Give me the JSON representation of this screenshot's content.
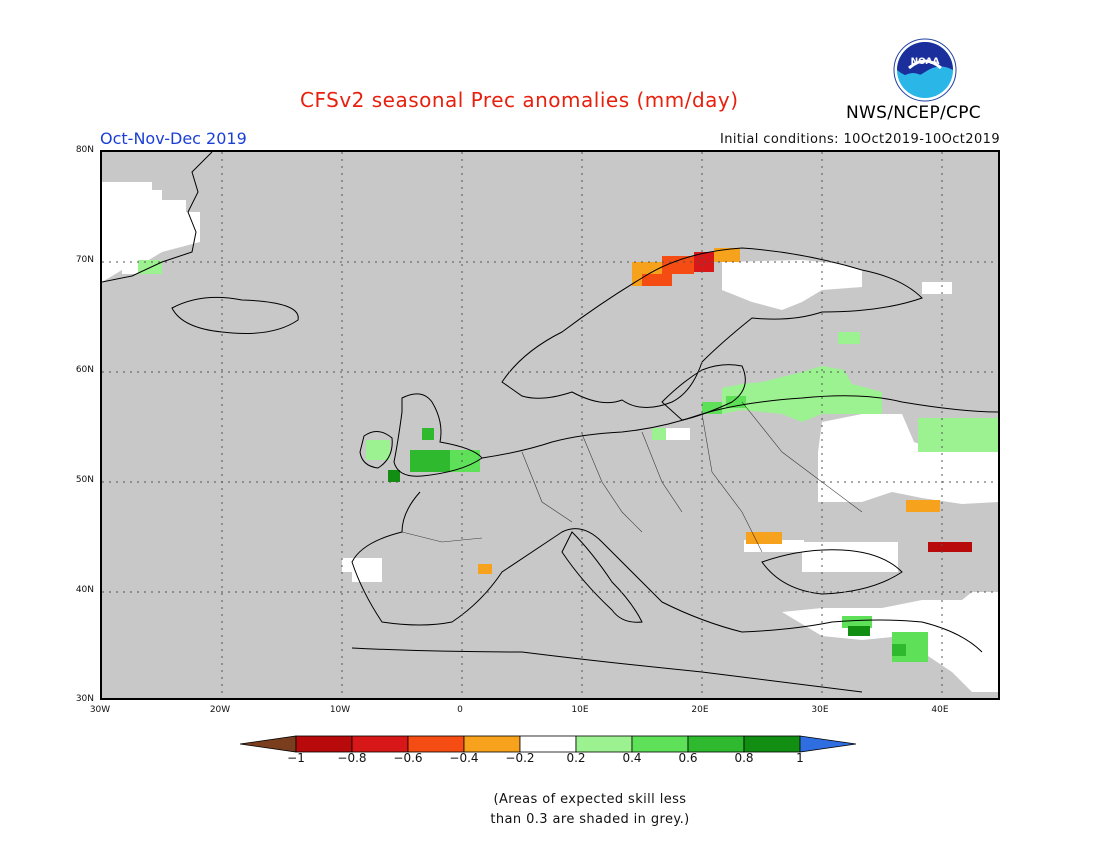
{
  "header": {
    "title": "CFSv2 seasonal Prec anomalies (mm/day)",
    "period": "Oct-Nov-Dec 2019",
    "initial_conditions": "Initial conditions: 10Oct2019-10Oct2019",
    "agency": "NWS/NCEP/CPC",
    "logo_text": "NOAA"
  },
  "map": {
    "projection": "lat-lon",
    "lon_range": [
      -30,
      45
    ],
    "lat_range": [
      30,
      80
    ],
    "land_color": "#c8c8c8",
    "grid": true,
    "lat_labels": [
      "80N",
      "70N",
      "60N",
      "50N",
      "40N",
      "30N"
    ],
    "lon_labels": [
      "30W",
      "20W",
      "10W",
      "0",
      "10E",
      "20E",
      "30E",
      "40E"
    ]
  },
  "legend": {
    "colors": [
      "#7a3d1e",
      "#b80a0a",
      "#d81818",
      "#f44c12",
      "#f7a21c",
      "#ffffff",
      "#9cf291",
      "#5ee059",
      "#2fb92e",
      "#128e13",
      "#2f6ee0"
    ],
    "labels": [
      "-1",
      "-0.8",
      "-0.6",
      "-0.4",
      "-0.2",
      "0.2",
      "0.4",
      "0.6",
      "0.8",
      "1"
    ]
  },
  "note": {
    "line1": "(Areas of expected skill less",
    "line2": "than 0.3 are shaded in grey.)"
  }
}
